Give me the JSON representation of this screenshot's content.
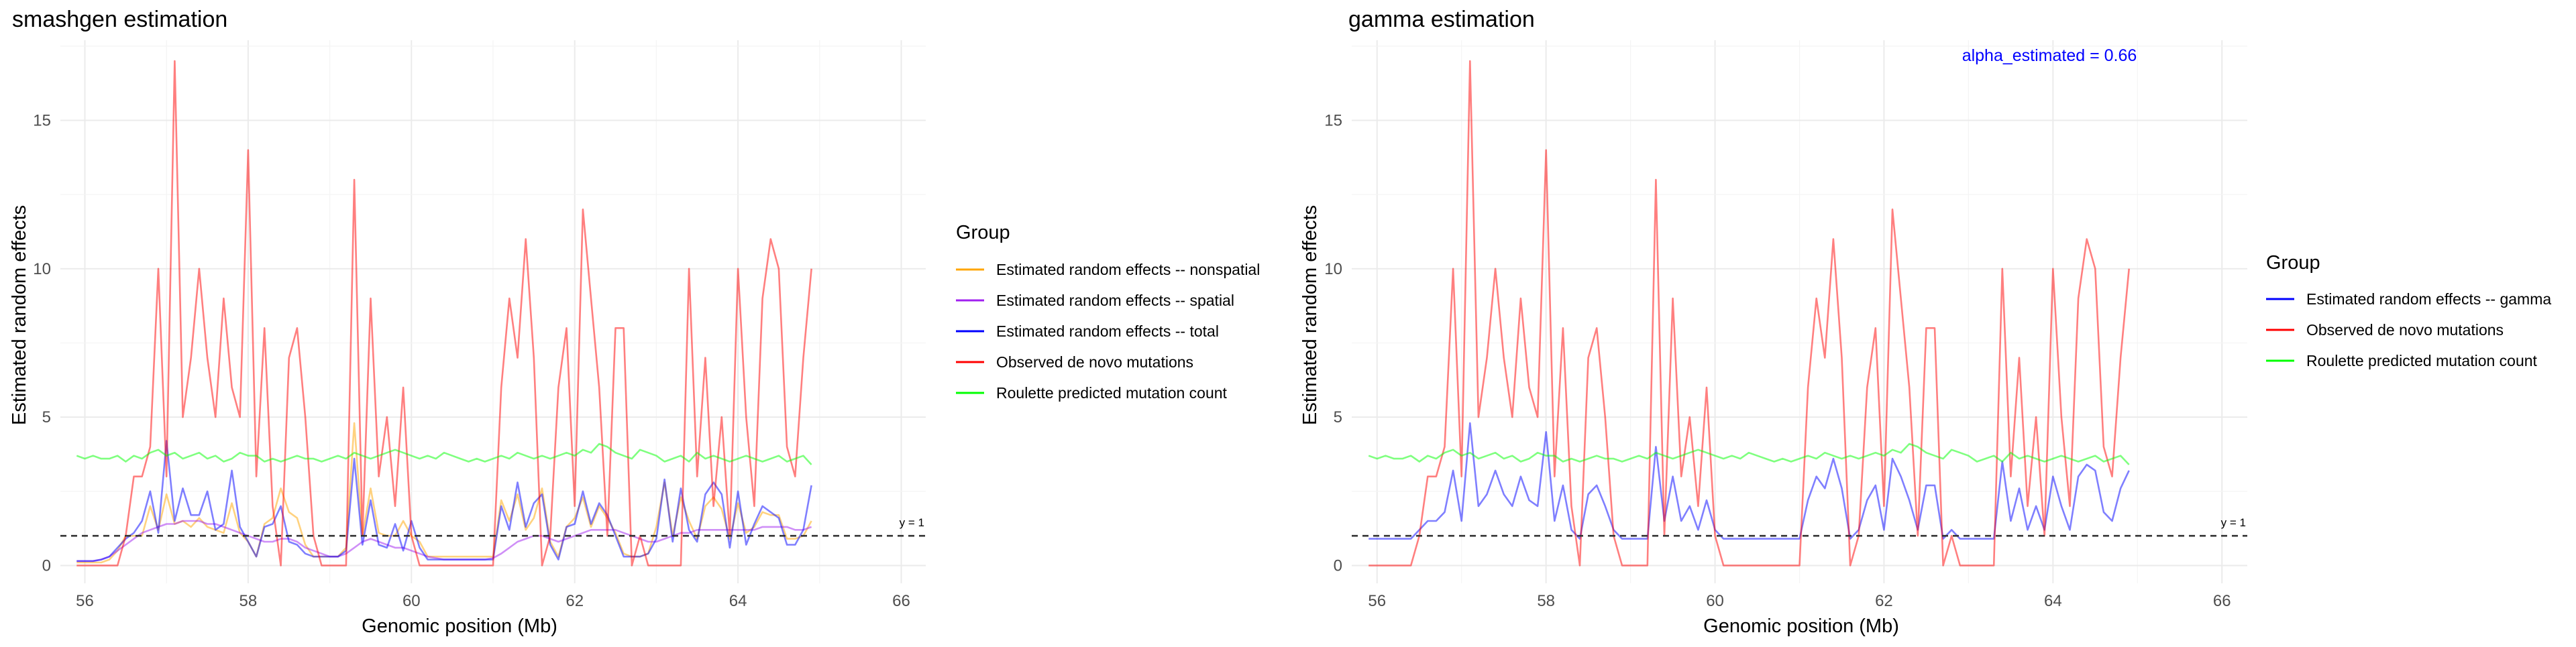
{
  "colors": {
    "nonspatial": "#ffa500",
    "spatial": "#a020f0",
    "total": "#0000ff",
    "observed": "#ff0000",
    "roulette": "#00ff00",
    "annotation": "#0000ff",
    "reference": "#333333"
  },
  "chart_data": [
    {
      "type": "line",
      "title": "smashgen estimation",
      "xlabel": "Genomic position (Mb)",
      "ylabel": "Estimated random effects",
      "xlim": [
        55.7,
        66.3
      ],
      "ylim": [
        -0.6,
        17.7
      ],
      "x_ticks": [
        56,
        58,
        60,
        62,
        64,
        66
      ],
      "y_ticks": [
        0,
        5,
        10,
        15
      ],
      "grid": true,
      "legend_position": "right",
      "legend_title": "Group",
      "reference_line": {
        "y": 1,
        "style": "dashed",
        "label": "y = 1"
      },
      "x_range": [
        55.9,
        65.9
      ],
      "x_step": 0.1,
      "series": [
        {
          "name": "Estimated random effects -- nonspatial",
          "color_key": "nonspatial",
          "values": [
            0.1,
            0.1,
            0.1,
            0.1,
            0.2,
            0.5,
            1.0,
            1.0,
            1.0,
            2.0,
            1.2,
            2.4,
            1.4,
            1.5,
            1.3,
            1.6,
            1.3,
            1.2,
            1.1,
            2.1,
            1.1,
            0.8,
            0.3,
            1.4,
            1.6,
            2.6,
            1.8,
            1.6,
            0.7,
            0.3,
            0.3,
            0.3,
            0.3,
            0.6,
            4.8,
            1.0,
            2.6,
            1.1,
            1.0,
            1.0,
            1.5,
            1.0,
            0.8,
            0.3,
            0.3,
            0.3,
            0.3,
            0.3,
            0.3,
            0.3,
            0.3,
            0.3,
            2.2,
            1.5,
            2.4,
            1.2,
            1.6,
            2.6,
            0.8,
            0.3,
            1.3,
            1.6,
            2.3,
            1.3,
            2.0,
            1.6,
            1.1,
            0.4,
            0.3,
            0.3,
            0.4,
            1.3,
            2.8,
            1.0,
            2.3,
            1.5,
            0.9,
            2.0,
            2.3,
            1.9,
            0.9,
            2.1,
            1.1,
            1.3,
            1.8,
            1.7,
            1.7,
            0.9,
            0.9,
            1.0,
            1.5
          ]
        },
        {
          "name": "Estimated random effects -- spatial",
          "color_key": "spatial",
          "values": [
            0.15,
            0.15,
            0.15,
            0.2,
            0.3,
            0.5,
            0.7,
            0.9,
            1.1,
            1.2,
            1.3,
            1.4,
            1.4,
            1.5,
            1.5,
            1.5,
            1.4,
            1.4,
            1.3,
            1.2,
            1.1,
            1.0,
            0.9,
            0.8,
            0.8,
            0.9,
            0.9,
            0.8,
            0.6,
            0.5,
            0.4,
            0.3,
            0.3,
            0.4,
            0.6,
            0.8,
            0.9,
            0.8,
            0.7,
            0.6,
            0.6,
            0.5,
            0.4,
            0.3,
            0.25,
            0.2,
            0.2,
            0.2,
            0.2,
            0.2,
            0.2,
            0.25,
            0.4,
            0.6,
            0.8,
            0.9,
            1.0,
            1.0,
            0.9,
            0.8,
            0.9,
            1.0,
            1.1,
            1.2,
            1.2,
            1.2,
            1.2,
            1.1,
            1.0,
            0.9,
            0.8,
            0.8,
            0.9,
            1.0,
            1.1,
            1.1,
            1.2,
            1.2,
            1.2,
            1.2,
            1.2,
            1.2,
            1.2,
            1.2,
            1.3,
            1.3,
            1.3,
            1.3,
            1.2,
            1.2,
            1.3
          ]
        },
        {
          "name": "Estimated random effects -- total",
          "color_key": "total",
          "values": [
            0.15,
            0.15,
            0.15,
            0.2,
            0.3,
            0.6,
            0.9,
            1.1,
            1.5,
            2.5,
            1.1,
            4.2,
            1.5,
            2.6,
            1.7,
            1.7,
            2.5,
            1.2,
            1.4,
            3.2,
            1.3,
            0.8,
            0.3,
            1.3,
            1.4,
            2.0,
            0.8,
            0.7,
            0.4,
            0.3,
            0.3,
            0.3,
            0.3,
            0.5,
            3.6,
            0.7,
            2.2,
            0.7,
            0.6,
            1.4,
            0.5,
            1.5,
            0.6,
            0.2,
            0.2,
            0.2,
            0.2,
            0.2,
            0.2,
            0.2,
            0.2,
            0.2,
            2.0,
            1.2,
            2.8,
            1.3,
            2.1,
            2.4,
            0.7,
            0.2,
            1.3,
            1.4,
            2.5,
            1.4,
            2.1,
            1.7,
            1.0,
            0.3,
            0.3,
            0.3,
            0.4,
            0.9,
            2.9,
            0.8,
            2.6,
            1.2,
            0.8,
            2.4,
            2.8,
            2.4,
            0.6,
            2.5,
            0.7,
            1.4,
            2.0,
            1.8,
            1.6,
            0.7,
            0.7,
            1.2,
            2.7
          ]
        },
        {
          "name": "Observed de novo mutations",
          "color_key": "observed",
          "values": [
            0,
            0,
            0,
            0,
            0,
            0,
            1,
            3,
            3,
            4,
            10,
            3,
            17,
            5,
            7,
            10,
            7,
            5,
            9,
            6,
            5,
            14,
            3,
            8,
            2,
            0,
            7,
            8,
            5,
            1,
            0,
            0,
            0,
            0,
            13,
            1,
            9,
            3,
            5,
            2,
            6,
            1,
            0,
            0,
            0,
            0,
            0,
            0,
            0,
            0,
            0,
            0,
            6,
            9,
            7,
            11,
            7,
            0,
            1,
            6,
            8,
            2,
            12,
            9,
            6,
            1,
            8,
            8,
            0,
            1,
            0,
            0,
            0,
            0,
            0,
            10,
            3,
            7,
            2,
            5,
            1,
            10,
            5,
            2,
            9,
            11,
            10,
            4,
            3,
            7,
            10
          ]
        },
        {
          "name": "Roulette predicted mutation count",
          "color_key": "roulette",
          "values": [
            3.7,
            3.6,
            3.7,
            3.6,
            3.6,
            3.7,
            3.5,
            3.7,
            3.6,
            3.8,
            3.9,
            3.7,
            3.8,
            3.6,
            3.7,
            3.8,
            3.6,
            3.7,
            3.5,
            3.6,
            3.8,
            3.7,
            3.7,
            3.5,
            3.6,
            3.5,
            3.6,
            3.7,
            3.6,
            3.6,
            3.5,
            3.6,
            3.7,
            3.6,
            3.8,
            3.7,
            3.6,
            3.7,
            3.8,
            3.9,
            3.8,
            3.7,
            3.6,
            3.7,
            3.6,
            3.8,
            3.7,
            3.6,
            3.5,
            3.6,
            3.5,
            3.6,
            3.7,
            3.6,
            3.8,
            3.7,
            3.6,
            3.7,
            3.6,
            3.7,
            3.8,
            3.7,
            3.9,
            3.8,
            4.1,
            4.0,
            3.8,
            3.7,
            3.6,
            3.9,
            3.8,
            3.7,
            3.5,
            3.6,
            3.7,
            3.5,
            3.8,
            3.6,
            3.7,
            3.6,
            3.5,
            3.6,
            3.7,
            3.6,
            3.5,
            3.6,
            3.7,
            3.5,
            3.6,
            3.7,
            3.4
          ]
        }
      ]
    },
    {
      "type": "line",
      "title": "gamma estimation",
      "xlabel": "Genomic position (Mb)",
      "ylabel": "Estimated random effects",
      "xlim": [
        55.7,
        66.3
      ],
      "ylim": [
        -0.6,
        17.7
      ],
      "x_ticks": [
        56,
        58,
        60,
        62,
        64,
        66
      ],
      "y_ticks": [
        0,
        5,
        10,
        15
      ],
      "grid": true,
      "legend_position": "right",
      "legend_title": "Group",
      "annotation": "alpha_estimated = 0.66",
      "reference_line": {
        "y": 1,
        "style": "dashed",
        "label": "y = 1"
      },
      "x_range": [
        55.9,
        65.9
      ],
      "x_step": 0.1,
      "series": [
        {
          "name": "Estimated random effects -- gamma",
          "color_key": "total",
          "values": [
            0.9,
            0.9,
            0.9,
            0.9,
            0.9,
            0.9,
            1.2,
            1.5,
            1.5,
            1.8,
            3.2,
            1.5,
            4.8,
            2.0,
            2.4,
            3.2,
            2.4,
            2.0,
            3.0,
            2.2,
            2.0,
            4.5,
            1.5,
            2.7,
            1.2,
            0.9,
            2.4,
            2.7,
            2.0,
            1.2,
            0.9,
            0.9,
            0.9,
            0.9,
            4.0,
            1.5,
            3.0,
            1.5,
            2.0,
            1.2,
            2.2,
            1.2,
            0.9,
            0.9,
            0.9,
            0.9,
            0.9,
            0.9,
            0.9,
            0.9,
            0.9,
            0.9,
            2.2,
            3.0,
            2.6,
            3.6,
            2.6,
            0.9,
            1.2,
            2.2,
            2.7,
            1.2,
            3.6,
            3.0,
            2.2,
            1.2,
            2.7,
            2.7,
            0.9,
            1.2,
            0.9,
            0.9,
            0.9,
            0.9,
            0.9,
            3.5,
            1.5,
            2.6,
            1.2,
            2.0,
            1.2,
            3.0,
            2.0,
            1.2,
            3.0,
            3.4,
            3.2,
            1.8,
            1.5,
            2.6,
            3.2
          ]
        },
        {
          "name": "Observed de novo mutations",
          "color_key": "observed",
          "values": [
            0,
            0,
            0,
            0,
            0,
            0,
            1,
            3,
            3,
            4,
            10,
            3,
            17,
            5,
            7,
            10,
            7,
            5,
            9,
            6,
            5,
            14,
            3,
            8,
            2,
            0,
            7,
            8,
            5,
            1,
            0,
            0,
            0,
            0,
            13,
            1,
            9,
            3,
            5,
            2,
            6,
            1,
            0,
            0,
            0,
            0,
            0,
            0,
            0,
            0,
            0,
            0,
            6,
            9,
            7,
            11,
            7,
            0,
            1,
            6,
            8,
            2,
            12,
            9,
            6,
            1,
            8,
            8,
            0,
            1,
            0,
            0,
            0,
            0,
            0,
            10,
            3,
            7,
            2,
            5,
            1,
            10,
            5,
            2,
            9,
            11,
            10,
            4,
            3,
            7,
            10
          ]
        },
        {
          "name": "Roulette predicted mutation count",
          "color_key": "roulette",
          "values": [
            3.7,
            3.6,
            3.7,
            3.6,
            3.6,
            3.7,
            3.5,
            3.7,
            3.6,
            3.8,
            3.9,
            3.7,
            3.8,
            3.6,
            3.7,
            3.8,
            3.6,
            3.7,
            3.5,
            3.6,
            3.8,
            3.7,
            3.7,
            3.5,
            3.6,
            3.5,
            3.6,
            3.7,
            3.6,
            3.6,
            3.5,
            3.6,
            3.7,
            3.6,
            3.8,
            3.7,
            3.6,
            3.7,
            3.8,
            3.9,
            3.8,
            3.7,
            3.6,
            3.7,
            3.6,
            3.8,
            3.7,
            3.6,
            3.5,
            3.6,
            3.5,
            3.6,
            3.7,
            3.6,
            3.8,
            3.7,
            3.6,
            3.7,
            3.6,
            3.7,
            3.8,
            3.7,
            3.9,
            3.8,
            4.1,
            4.0,
            3.8,
            3.7,
            3.6,
            3.9,
            3.8,
            3.7,
            3.5,
            3.6,
            3.7,
            3.5,
            3.8,
            3.6,
            3.7,
            3.6,
            3.5,
            3.6,
            3.7,
            3.6,
            3.5,
            3.6,
            3.7,
            3.5,
            3.6,
            3.7,
            3.4
          ]
        }
      ]
    }
  ]
}
